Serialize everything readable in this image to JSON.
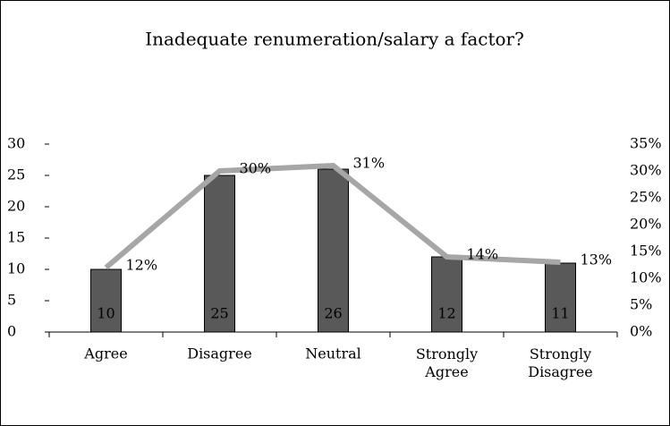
{
  "chart_data": {
    "type": "bar-line",
    "title": "Inadequate renumeration/salary a factor?",
    "categories": [
      "Agree",
      "Disagree",
      "Neutral",
      "Strongly Agree",
      "Strongly Disagree"
    ],
    "series": [
      {
        "type": "bar",
        "color": "#595959",
        "values": [
          10,
          25,
          26,
          12,
          11
        ]
      },
      {
        "type": "line",
        "color": "#a6a6a6",
        "axis": "y2",
        "values": [
          12,
          30,
          31,
          14,
          13
        ],
        "value_labels": [
          "12%",
          "30%",
          "31%",
          "14%",
          "13%"
        ]
      }
    ],
    "ylim": [
      0,
      30
    ],
    "yticks": [
      0,
      5,
      10,
      15,
      20,
      25,
      30
    ],
    "y2lim": [
      0,
      35
    ],
    "y2ticks": [
      {
        "value": 0,
        "label": "0%"
      },
      {
        "value": 5,
        "label": "5%"
      },
      {
        "value": 10,
        "label": "10%"
      },
      {
        "value": 15,
        "label": "15%"
      },
      {
        "value": 20,
        "label": "20%"
      },
      {
        "value": 25,
        "label": "25%"
      },
      {
        "value": 30,
        "label": "30%"
      },
      {
        "value": 35,
        "label": "35%"
      }
    ]
  }
}
